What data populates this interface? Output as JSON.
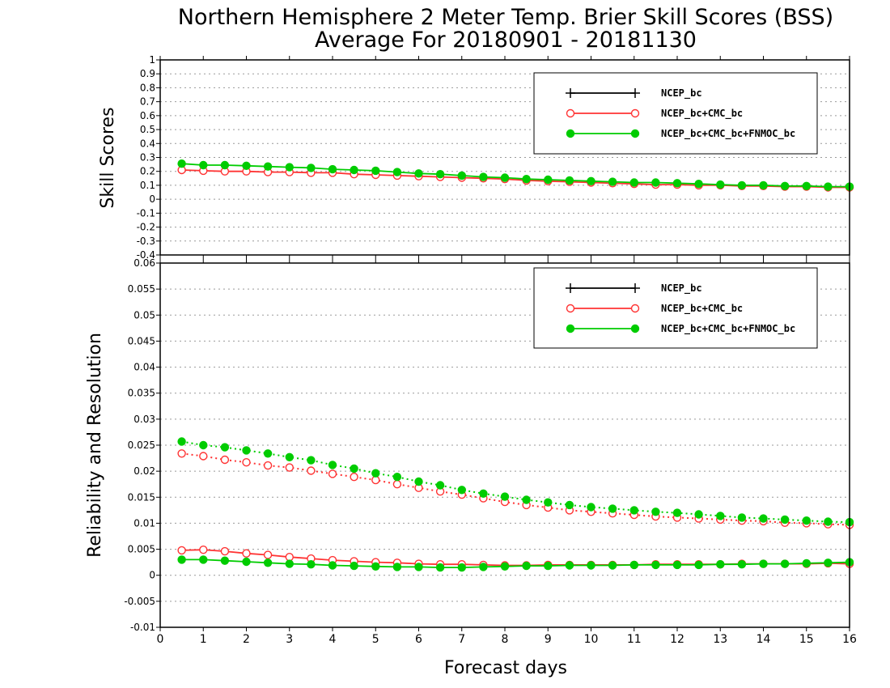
{
  "figure": {
    "title_line1": "Northern Hemisphere 2 Meter Temp. Brier Skill Scores (BSS)",
    "title_line2": "Average For 20180901 - 20181130",
    "xlabel": "Forecast days"
  },
  "colors": {
    "ncep_bc": "#000000",
    "cmc_combo": "#ff3333",
    "fnmoc_combo": "#00cc00",
    "grid": "#999999"
  },
  "chart_data": [
    {
      "type": "line",
      "title": "",
      "xlabel": "Forecast days",
      "ylabel": "Skill Scores",
      "xlim": [
        0,
        16
      ],
      "ylim": [
        -0.4,
        1
      ],
      "x_ticks": [
        "0",
        "1",
        "2",
        "3",
        "4",
        "5",
        "6",
        "7",
        "8",
        "9",
        "10",
        "11",
        "12",
        "13",
        "14",
        "15",
        "16"
      ],
      "y_ticks": [
        "-0.4",
        "-0.3",
        "-0.2",
        "-0.1",
        "0",
        "0.1",
        "0.2",
        "0.3",
        "0.4",
        "0.5",
        "0.6",
        "0.7",
        "0.8",
        "0.9",
        "1"
      ],
      "grid": true,
      "legend_position": "top-right",
      "legend": [
        "NCEP_bc",
        "NCEP_bc+CMC_bc",
        "NCEP_bc+CMC_bc+FNMOC_bc"
      ],
      "x": [
        0.5,
        1,
        1.5,
        2,
        2.5,
        3,
        3.5,
        4,
        4.5,
        5,
        5.5,
        6,
        6.5,
        7,
        7.5,
        8,
        8.5,
        9,
        9.5,
        10,
        10.5,
        11,
        11.5,
        12,
        12.5,
        13,
        13.5,
        14,
        14.5,
        15,
        15.5,
        16
      ],
      "series": [
        {
          "name": "NCEP_bc+CMC_bc",
          "style": "solid-open-circle",
          "values": [
            0.21,
            0.205,
            0.2,
            0.2,
            0.195,
            0.195,
            0.19,
            0.19,
            0.18,
            0.175,
            0.17,
            0.165,
            0.16,
            0.155,
            0.15,
            0.145,
            0.135,
            0.13,
            0.125,
            0.12,
            0.115,
            0.11,
            0.105,
            0.105,
            0.1,
            0.1,
            0.095,
            0.095,
            0.09,
            0.09,
            0.085,
            0.085
          ]
        },
        {
          "name": "NCEP_bc+CMC_bc+FNMOC_bc",
          "style": "solid-filled-circle",
          "values": [
            0.255,
            0.245,
            0.245,
            0.24,
            0.235,
            0.23,
            0.225,
            0.215,
            0.21,
            0.205,
            0.195,
            0.185,
            0.18,
            0.17,
            0.16,
            0.155,
            0.145,
            0.14,
            0.135,
            0.13,
            0.125,
            0.12,
            0.12,
            0.115,
            0.11,
            0.105,
            0.1,
            0.1,
            0.095,
            0.095,
            0.09,
            0.09
          ]
        }
      ]
    },
    {
      "type": "line",
      "title": "",
      "xlabel": "Forecast days",
      "ylabel": "Reliability and Resolution",
      "xlim": [
        0,
        16
      ],
      "ylim": [
        -0.01,
        0.06
      ],
      "x_ticks": [
        "0",
        "1",
        "2",
        "3",
        "4",
        "5",
        "6",
        "7",
        "8",
        "9",
        "10",
        "11",
        "12",
        "13",
        "14",
        "15",
        "16"
      ],
      "y_ticks": [
        "-0.01",
        "-0.005",
        "0",
        "0.005",
        "0.01",
        "0.015",
        "0.02",
        "0.025",
        "0.03",
        "0.035",
        "0.04",
        "0.045",
        "0.05",
        "0.055",
        "0.06"
      ],
      "grid": true,
      "legend_position": "top-right",
      "legend": [
        "NCEP_bc",
        "NCEP_bc+CMC_bc",
        "NCEP_bc+CMC_bc+FNMOC_bc"
      ],
      "x": [
        0.5,
        1,
        1.5,
        2,
        2.5,
        3,
        3.5,
        4,
        4.5,
        5,
        5.5,
        6,
        6.5,
        7,
        7.5,
        8,
        8.5,
        9,
        9.5,
        10,
        10.5,
        11,
        11.5,
        12,
        12.5,
        13,
        13.5,
        14,
        14.5,
        15,
        15.5,
        16
      ],
      "series": [
        {
          "name": "NCEP_bc+CMC_bc",
          "style": "dotted-open-circle",
          "values": [
            0.0234,
            0.0229,
            0.0222,
            0.0217,
            0.0211,
            0.0207,
            0.0201,
            0.0195,
            0.0189,
            0.0183,
            0.0175,
            0.0168,
            0.0161,
            0.0155,
            0.0148,
            0.0141,
            0.0135,
            0.013,
            0.0125,
            0.0122,
            0.0119,
            0.0116,
            0.0113,
            0.0111,
            0.0109,
            0.0107,
            0.0105,
            0.0104,
            0.0101,
            0.01,
            0.0098,
            0.0097
          ]
        },
        {
          "name": "NCEP_bc+CMC_bc+FNMOC_bc",
          "style": "dotted-filled-circle",
          "values": [
            0.0257,
            0.025,
            0.0246,
            0.024,
            0.0234,
            0.0227,
            0.0221,
            0.0212,
            0.0205,
            0.0196,
            0.0189,
            0.018,
            0.0173,
            0.0164,
            0.0157,
            0.0151,
            0.0145,
            0.014,
            0.0135,
            0.0131,
            0.0128,
            0.0125,
            0.0122,
            0.012,
            0.0117,
            0.0114,
            0.0111,
            0.0109,
            0.0107,
            0.0105,
            0.0103,
            0.0102
          ]
        },
        {
          "name": "NCEP_bc+CMC_bc",
          "style": "solid-open-circle",
          "values": [
            0.0048,
            0.0049,
            0.0046,
            0.0042,
            0.0039,
            0.0035,
            0.0032,
            0.0029,
            0.0027,
            0.0025,
            0.0024,
            0.0022,
            0.0021,
            0.0021,
            0.002,
            0.0019,
            0.0019,
            0.002,
            0.002,
            0.002,
            0.002,
            0.002,
            0.0021,
            0.0021,
            0.0021,
            0.0021,
            0.0022,
            0.0022,
            0.0022,
            0.0022,
            0.0023,
            0.0022
          ]
        },
        {
          "name": "NCEP_bc+CMC_bc+FNMOC_bc",
          "style": "solid-filled-circle",
          "values": [
            0.003,
            0.003,
            0.0028,
            0.0026,
            0.0024,
            0.0022,
            0.0021,
            0.0019,
            0.0018,
            0.0017,
            0.0016,
            0.0016,
            0.0015,
            0.0015,
            0.0016,
            0.0017,
            0.0018,
            0.0018,
            0.0019,
            0.0019,
            0.0019,
            0.002,
            0.002,
            0.002,
            0.002,
            0.0021,
            0.0021,
            0.0022,
            0.0022,
            0.0023,
            0.0024,
            0.0025
          ]
        }
      ]
    }
  ]
}
